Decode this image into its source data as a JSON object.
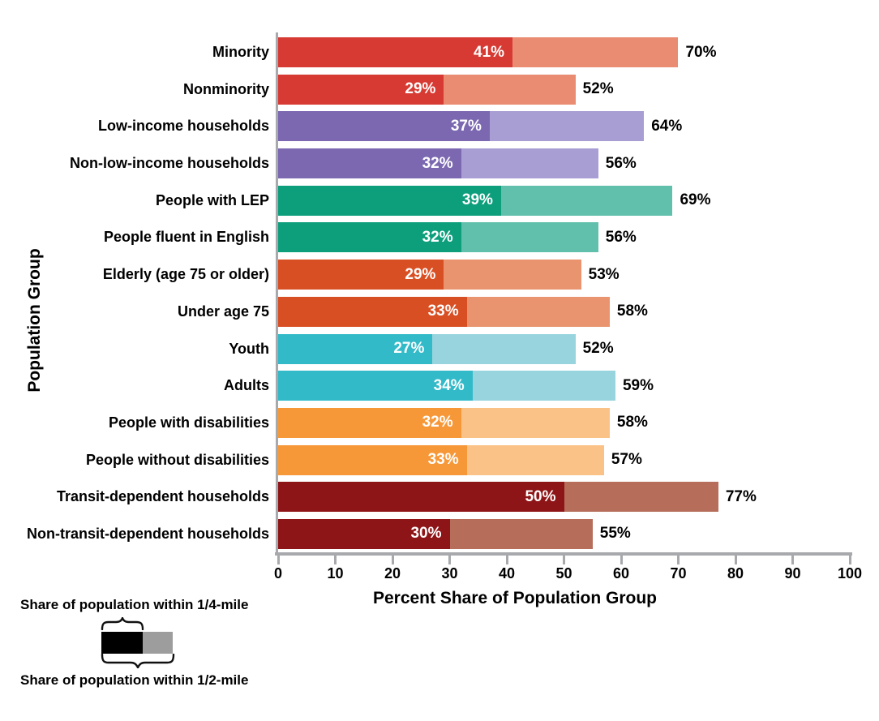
{
  "chart_data": {
    "type": "bar",
    "orientation": "horizontal",
    "title": "",
    "xlabel": "Percent Share of Population Group",
    "ylabel": "Population Group",
    "xlim": [
      0,
      100
    ],
    "xticks": [
      0,
      10,
      20,
      30,
      40,
      50,
      60,
      70,
      80,
      90,
      100
    ],
    "grid": false,
    "categories": [
      "Minority",
      "Nonminority",
      "Low-income households",
      "Non-low-income households",
      "People with LEP",
      "People fluent in English",
      "Elderly (age 75 or older)",
      "Under age 75",
      "Youth",
      "Adults",
      "People with disabilities",
      "People without disabilities",
      "Transit-dependent households",
      "Non-transit-dependent households"
    ],
    "series": [
      {
        "name": "Share of population within 1/4-mile",
        "values": [
          41,
          29,
          37,
          32,
          39,
          32,
          29,
          33,
          27,
          34,
          32,
          33,
          50,
          30
        ]
      },
      {
        "name": "Share of population within 1/2-mile",
        "values": [
          70,
          52,
          64,
          56,
          69,
          56,
          53,
          58,
          52,
          59,
          58,
          57,
          77,
          55
        ]
      }
    ],
    "value_label_suffix": "%",
    "color_pairs": [
      {
        "dark": "#d63a32",
        "light": "#e98c72"
      },
      {
        "dark": "#d63a32",
        "light": "#e98c72"
      },
      {
        "dark": "#7b68b1",
        "light": "#a99ed3"
      },
      {
        "dark": "#7b68b1",
        "light": "#a99ed3"
      },
      {
        "dark": "#0d9e7c",
        "light": "#60c0ab"
      },
      {
        "dark": "#0d9e7c",
        "light": "#60c0ab"
      },
      {
        "dark": "#d94f24",
        "light": "#e9946f"
      },
      {
        "dark": "#d94f24",
        "light": "#e9946f"
      },
      {
        "dark": "#33bac9",
        "light": "#97d4dd"
      },
      {
        "dark": "#33bac9",
        "light": "#97d4dd"
      },
      {
        "dark": "#f79838",
        "light": "#fbc287"
      },
      {
        "dark": "#f79838",
        "light": "#fbc287"
      },
      {
        "dark": "#8e1517",
        "light": "#b66e5a"
      },
      {
        "dark": "#8e1517",
        "light": "#b66e5a"
      }
    ],
    "axis_color": "#a7a9ac"
  },
  "legend": {
    "quarter_mile_label": "Share of population within 1/4-mile",
    "half_mile_label": "Share of population within 1/2-mile",
    "quarter_swatch_color": "#000000",
    "half_swatch_color": "#9d9d9d"
  }
}
